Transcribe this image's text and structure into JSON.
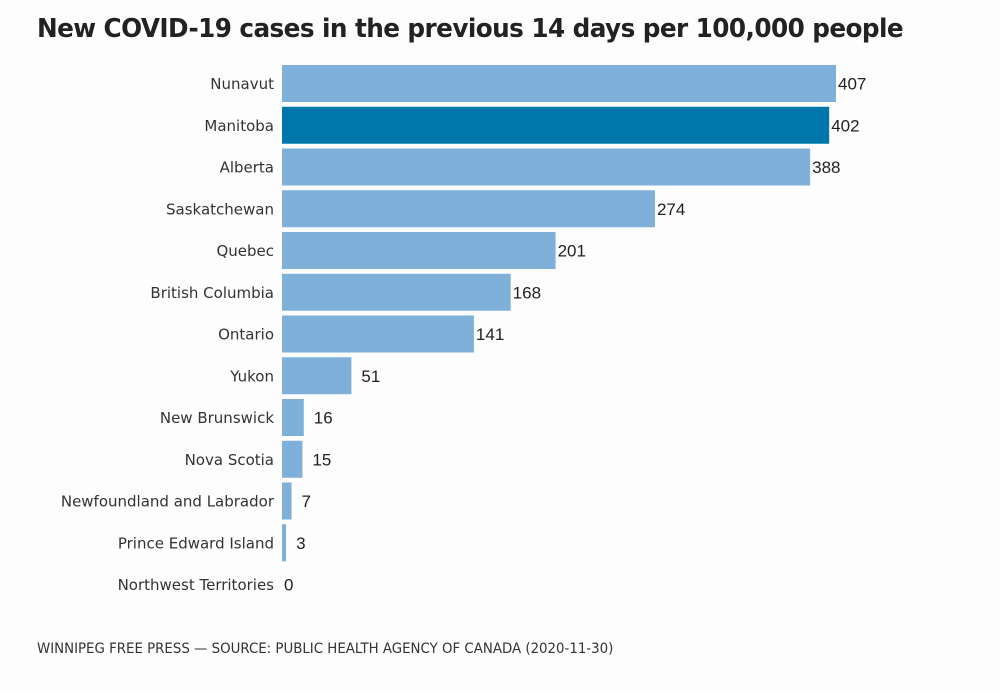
{
  "chart_data": {
    "type": "bar",
    "orientation": "horizontal",
    "title": "New COVID-19 cases in the previous 14 days per 100,000 people",
    "xlabel": "",
    "ylabel": "",
    "categories": [
      "Nunavut",
      "Manitoba",
      "Alberta",
      "Saskatchewan",
      "Quebec",
      "British Columbia",
      "Ontario",
      "Yukon",
      "New Brunswick",
      "Nova Scotia",
      "Newfoundland and Labrador",
      "Prince Edward Island",
      "Northwest Territories"
    ],
    "values": [
      407,
      402,
      388,
      274,
      201,
      168,
      141,
      51,
      16,
      15,
      7,
      3,
      0
    ],
    "highlight": "Manitoba",
    "colors": {
      "bar": "#7fb0d9",
      "highlight": "#0077aa",
      "label": "#222222"
    },
    "xlim": [
      0,
      407
    ],
    "grid": false,
    "legend": "none",
    "source": "WINNIPEG FREE PRESS — SOURCE: PUBLIC HEALTH AGENCY OF CANADA (2020-11-30)"
  }
}
